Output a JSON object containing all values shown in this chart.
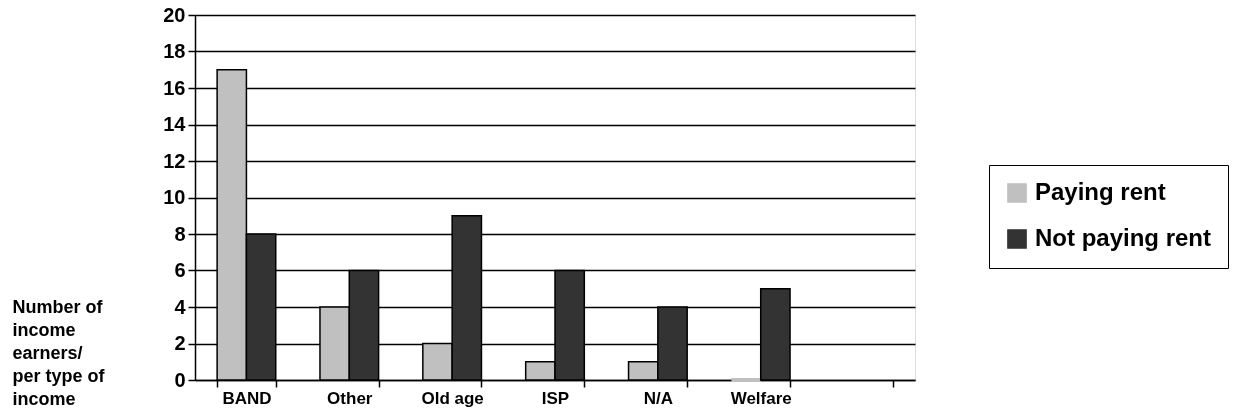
{
  "chart_data": {
    "type": "bar",
    "categories": [
      "BAND",
      "Other",
      "Old age",
      "ISP",
      "N/A",
      "Welfare",
      null
    ],
    "series": [
      {
        "name": "Paying rent",
        "color": "#c0c0c0",
        "values": [
          17,
          4,
          2,
          1,
          1,
          0,
          null
        ]
      },
      {
        "name": "Not paying rent",
        "color": "#333333",
        "values": [
          8,
          6,
          9,
          6,
          4,
          5,
          null
        ]
      }
    ],
    "ylabel": "Number of income earners/ per type of income",
    "ylim": [
      0,
      20
    ],
    "yticks": [
      0,
      2,
      4,
      6,
      8,
      10,
      12,
      14,
      16,
      18,
      20
    ],
    "grid": "y",
    "legend": "right"
  }
}
